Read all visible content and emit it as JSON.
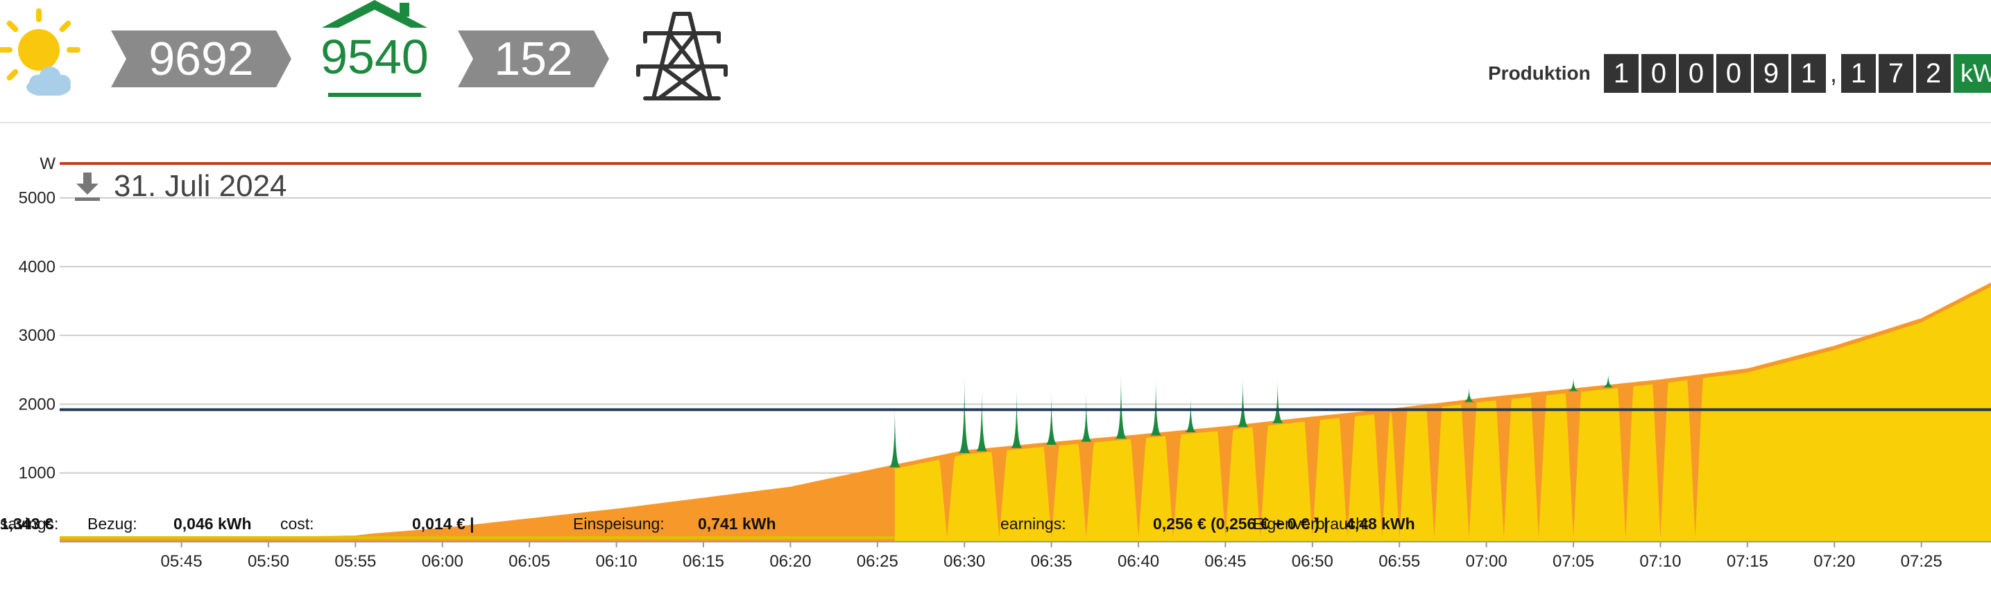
{
  "header": {
    "solar_value": "9692",
    "house_value": "9540",
    "grid_value": "152",
    "production_label": "Produktion",
    "counter_digits": [
      "1",
      "0",
      "0",
      "0",
      "9",
      "1"
    ],
    "counter_separator": ",",
    "counter_decimals": [
      "1",
      "7",
      "2"
    ],
    "counter_unit": "kW",
    "icons": [
      "sun-cloud-icon",
      "house-roof-icon",
      "power-pylon-icon",
      "download-icon"
    ]
  },
  "chart_data": {
    "type": "area",
    "title": "31. Juli 2024",
    "ylabel": "W",
    "xlabel": "",
    "ylim": [
      0,
      5500
    ],
    "yticks": [
      1000,
      2000,
      3000,
      4000,
      5000
    ],
    "xlim": [
      "05:38",
      "07:29"
    ],
    "xticks": [
      "05:45",
      "05:50",
      "05:55",
      "06:00",
      "06:05",
      "06:10",
      "06:15",
      "06:20",
      "06:25",
      "06:30",
      "06:35",
      "06:40",
      "06:45",
      "06:50",
      "06:55",
      "07:00",
      "07:05",
      "07:10",
      "07:15",
      "07:20",
      "07:25"
    ],
    "reference_lines": [
      {
        "value": 5500,
        "color": "#c43c1e"
      },
      {
        "value": 1920,
        "color": "#1f3a5a"
      }
    ],
    "colors": {
      "production": "#f7992a",
      "self_consumption": "#f9cf07",
      "grid_import": "#1c8a3e"
    },
    "production": {
      "x": [
        "05:38",
        "05:50",
        "05:55",
        "05:56",
        "06:00",
        "06:05",
        "06:10",
        "06:15",
        "06:20",
        "06:25",
        "06:30",
        "06:35",
        "06:40",
        "06:45",
        "06:50",
        "06:55",
        "07:00",
        "07:05",
        "07:10",
        "07:15",
        "07:20",
        "07:25",
        "07:29"
      ],
      "values": [
        60,
        70,
        90,
        120,
        200,
        340,
        480,
        640,
        800,
        1070,
        1330,
        1450,
        1560,
        1680,
        1820,
        1950,
        2100,
        2230,
        2360,
        2520,
        2850,
        3250,
        3770
      ]
    },
    "self_consumption_until": "06:26",
    "consumption_dips": [
      "06:29",
      "06:32",
      "06:35",
      "06:37",
      "06:40",
      "06:42",
      "06:45",
      "06:47",
      "06:50",
      "06:52",
      "06:54",
      "06:55",
      "06:57",
      "06:59",
      "07:01",
      "07:03",
      "07:05",
      "07:08",
      "07:10",
      "07:12"
    ],
    "grid_spikes": [
      {
        "x": "06:26",
        "peak": 2000
      },
      {
        "x": "06:30",
        "peak": 2480
      },
      {
        "x": "06:31",
        "peak": 2270
      },
      {
        "x": "06:33",
        "peak": 2260
      },
      {
        "x": "06:35",
        "peak": 2210
      },
      {
        "x": "06:37",
        "peak": 2190
      },
      {
        "x": "06:39",
        "peak": 2480
      },
      {
        "x": "06:41",
        "peak": 2400
      },
      {
        "x": "06:43",
        "peak": 2120
      },
      {
        "x": "06:46",
        "peak": 2420
      },
      {
        "x": "06:48",
        "peak": 2380
      },
      {
        "x": "06:59",
        "peak": 2260
      },
      {
        "x": "07:05",
        "peak": 2400
      },
      {
        "x": "07:07",
        "peak": 2450
      }
    ],
    "summary": [
      {
        "label": "Bezug:",
        "value": "0,046 kWh"
      },
      {
        "label": "cost:",
        "value": "0,014 € |"
      },
      {
        "label": "Einspeisung:",
        "value": "0,741 kWh"
      },
      {
        "label": "earnings:",
        "value": "0,256 € (0,256 € + 0 € ) |"
      },
      {
        "label": "Eigenverbrauch:",
        "value": "4,48 kWh"
      },
      {
        "label": "savings:",
        "value": "1,343 €"
      }
    ]
  }
}
